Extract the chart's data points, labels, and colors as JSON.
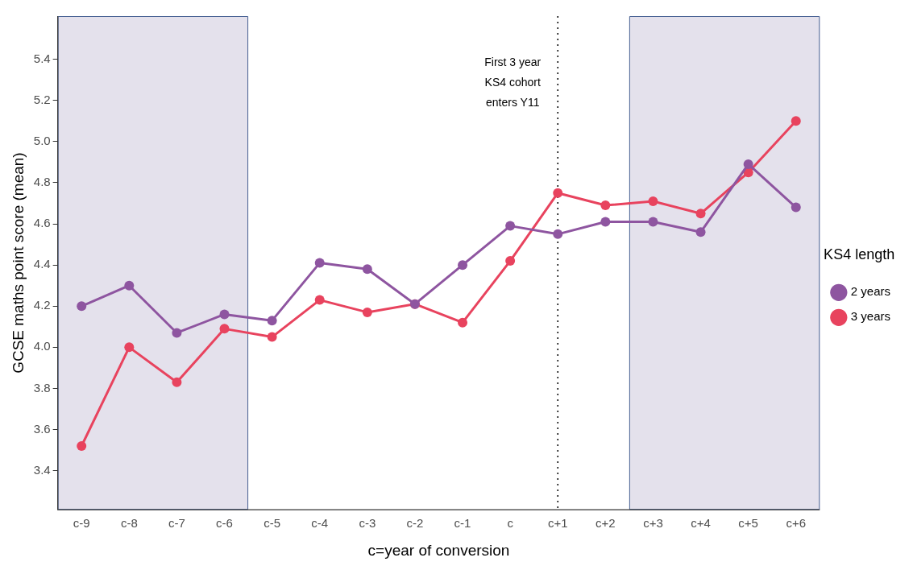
{
  "chart_data": {
    "type": "line",
    "xlabel": "c=year of conversion",
    "ylabel": "GCSE maths point score (mean)",
    "legend_title": "KS4 length",
    "categories": [
      "c-9",
      "c-8",
      "c-7",
      "c-6",
      "c-5",
      "c-4",
      "c-3",
      "c-2",
      "c-1",
      "c",
      "c+1",
      "c+2",
      "c+3",
      "c+4",
      "c+5",
      "c+6"
    ],
    "series": [
      {
        "name": "2 years",
        "color": "#8e55a0",
        "values": [
          4.2,
          4.3,
          4.07,
          4.16,
          4.13,
          4.41,
          4.38,
          4.21,
          4.4,
          4.59,
          4.55,
          4.61,
          4.61,
          4.56,
          4.89,
          4.68
        ]
      },
      {
        "name": "3 years",
        "color": "#e8435e",
        "values": [
          3.52,
          4.0,
          3.83,
          4.09,
          4.05,
          4.23,
          4.17,
          4.21,
          4.12,
          4.42,
          4.75,
          4.69,
          4.71,
          4.65,
          4.85,
          5.1
        ]
      }
    ],
    "ylim": [
      3.21,
      5.61
    ],
    "yticks": [
      3.4,
      3.6,
      3.8,
      {
        "value": 4,
        "label": "4.0"
      },
      4.2,
      4.4,
      4.6,
      4.8,
      {
        "value": 5,
        "label": "5.0"
      },
      5.2,
      5.4
    ],
    "ref_lines": [
      {
        "axis": "x",
        "value": "c+1",
        "label": "First 3 year KS4 cohort enters Y11",
        "line_style": "dotted",
        "color": "#000000"
      }
    ],
    "bands": [
      {
        "axis": "x",
        "from": "c-9",
        "to": "c-6",
        "color": "#e4e1ec"
      },
      {
        "axis": "x",
        "from": "c+3",
        "to": "c+6",
        "color": "#e4e1ec"
      }
    ],
    "grid": false,
    "legend": "right",
    "marker": "circle",
    "line_style": "solid"
  }
}
